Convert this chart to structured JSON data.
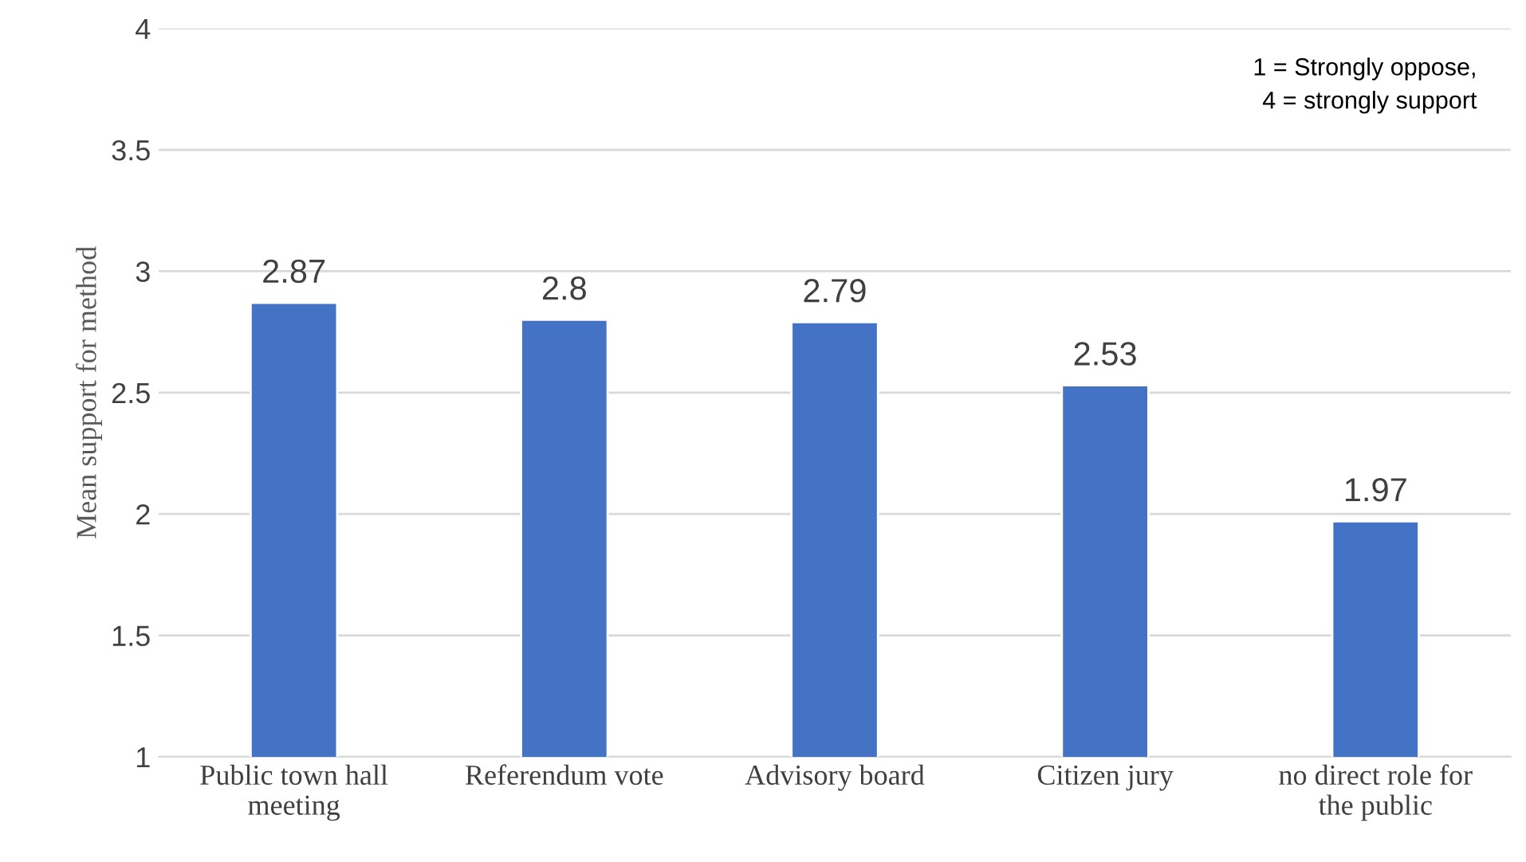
{
  "chart_data": {
    "type": "bar",
    "ylabel": "Mean support for method",
    "categories": [
      "Public town hall\nmeeting",
      "Referendum vote",
      "Advisory board",
      "Citizen jury",
      "no direct role for\nthe public"
    ],
    "values": [
      2.87,
      2.8,
      2.79,
      2.53,
      1.97
    ],
    "color": "#4472c4",
    "ylim": [
      1,
      4
    ],
    "yticks": [
      1,
      1.5,
      2,
      2.5,
      3,
      3.5,
      4
    ],
    "grid": "y",
    "data_labels": true,
    "legend": false,
    "annotations": [
      "1 = Strongly oppose,\n4 = strongly support"
    ]
  }
}
